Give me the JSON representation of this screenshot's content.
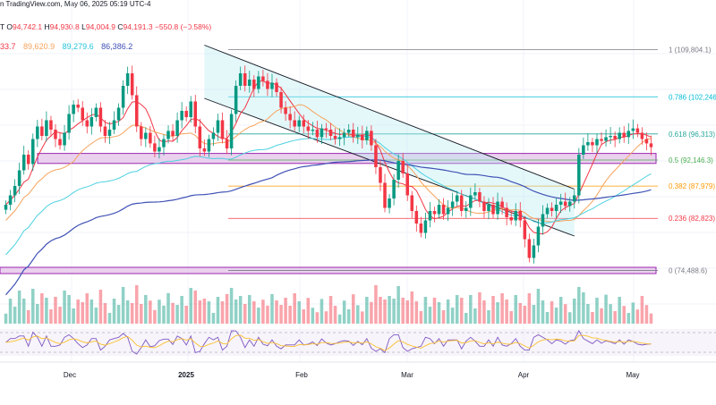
{
  "header": {
    "publisher": "n TradingView.com, May 06, 2025 05:19 UTC-4"
  },
  "ohlc": {
    "open_label": "O",
    "open": "94,742.1",
    "high_label": "H",
    "high": "94,930.8",
    "low_label": "L",
    "low": "94,004.9",
    "close_label": "C",
    "close": "94,191.3",
    "change": "−550.8 (−0.58%)"
  },
  "ma_values": {
    "ma1": "33.7",
    "ma2": "89,620.9",
    "ma3": "89,279.6",
    "ma4": "86,386.2",
    "prefix": "T"
  },
  "colors": {
    "bull": "#089981",
    "bear": "#f23645",
    "ma_red": "#f23645",
    "ma_orange": "#f7a35c",
    "ma_cyan": "#4dd0e1",
    "ma_navy": "#3f51b5",
    "channel_fill": "#b2ebf2",
    "zone_fill": "#e1bee7",
    "zone_stroke": "#9c27b0",
    "rsi": "#7e57c2",
    "rsi_ma": "#fbc02d"
  },
  "chart_data": {
    "type": "candlestick",
    "title": "",
    "xlabel": "",
    "ylabel": "",
    "x_ticks": [
      "Dec",
      "2025",
      "Feb",
      "Mar",
      "Apr",
      "May"
    ],
    "ylim": [
      72000,
      112000
    ],
    "fib_levels": [
      {
        "ratio": "1",
        "value": "109,804.1",
        "color": "#787b86"
      },
      {
        "ratio": "0.786",
        "value": "102,246",
        "color": "#00bcd4"
      },
      {
        "ratio": "0.618",
        "value": "96,313",
        "color": "#26a69a"
      },
      {
        "ratio": "0.5",
        "value": "92,146.3",
        "color": "#4caf50"
      },
      {
        "ratio": "0.382",
        "value": "87,979",
        "color": "#ff9800"
      },
      {
        "ratio": "0.236",
        "value": "82,823",
        "color": "#f23645"
      },
      {
        "ratio": "0",
        "value": "74,488.6",
        "color": "#787b86"
      }
    ],
    "support_zones": [
      {
        "low": 91600,
        "high": 93200
      },
      {
        "low": 74000,
        "high": 75000
      }
    ],
    "candles_approx_close": [
      85000,
      86500,
      88000,
      90500,
      93000,
      91500,
      95500,
      97500,
      96000,
      98500,
      97000,
      95500,
      94500,
      96500,
      99500,
      101000,
      100500,
      98500,
      97500,
      99000,
      100500,
      97500,
      96000,
      97000,
      98500,
      100500,
      104000,
      106000,
      102500,
      97500,
      95500,
      96500,
      94800,
      93500,
      94200,
      95500,
      96800,
      96000,
      98500,
      100000,
      99000,
      101500,
      97500,
      94000,
      93500,
      95500,
      96500,
      98500,
      95500,
      94000,
      99500,
      104000,
      106000,
      104000,
      105000,
      103500,
      105500,
      104800,
      103500,
      104500,
      103000,
      100500,
      99500,
      98500,
      97500,
      98500,
      97500,
      96800,
      97000,
      95800,
      97200,
      97000,
      96000,
      95500,
      95800,
      96500,
      97000,
      95800,
      96200,
      95300,
      96800,
      94500,
      91000,
      88500,
      84500,
      86000,
      89000,
      92000,
      90000,
      86500,
      84000,
      82000,
      80500,
      82500,
      84000,
      83500,
      85000,
      83500,
      84500,
      85500,
      86500,
      84000,
      84500,
      86500,
      87000,
      85500,
      84000,
      85000,
      83500,
      85500,
      84500,
      83000,
      82500,
      84000,
      82500,
      79500,
      76500,
      78500,
      81500,
      83500,
      84500,
      84000,
      85000,
      85500,
      84800,
      85500,
      86500,
      93000,
      94500,
      95000,
      94500,
      95500,
      95200,
      95800,
      96000,
      95500,
      96500,
      95800,
      96800,
      97200,
      96500,
      95500,
      94800,
      94200
    ],
    "moving_averages": [
      {
        "name": "MA red"
      },
      {
        "name": "MA orange"
      },
      {
        "name": "MA cyan"
      },
      {
        "name": "MA navy"
      }
    ],
    "grid": true
  }
}
